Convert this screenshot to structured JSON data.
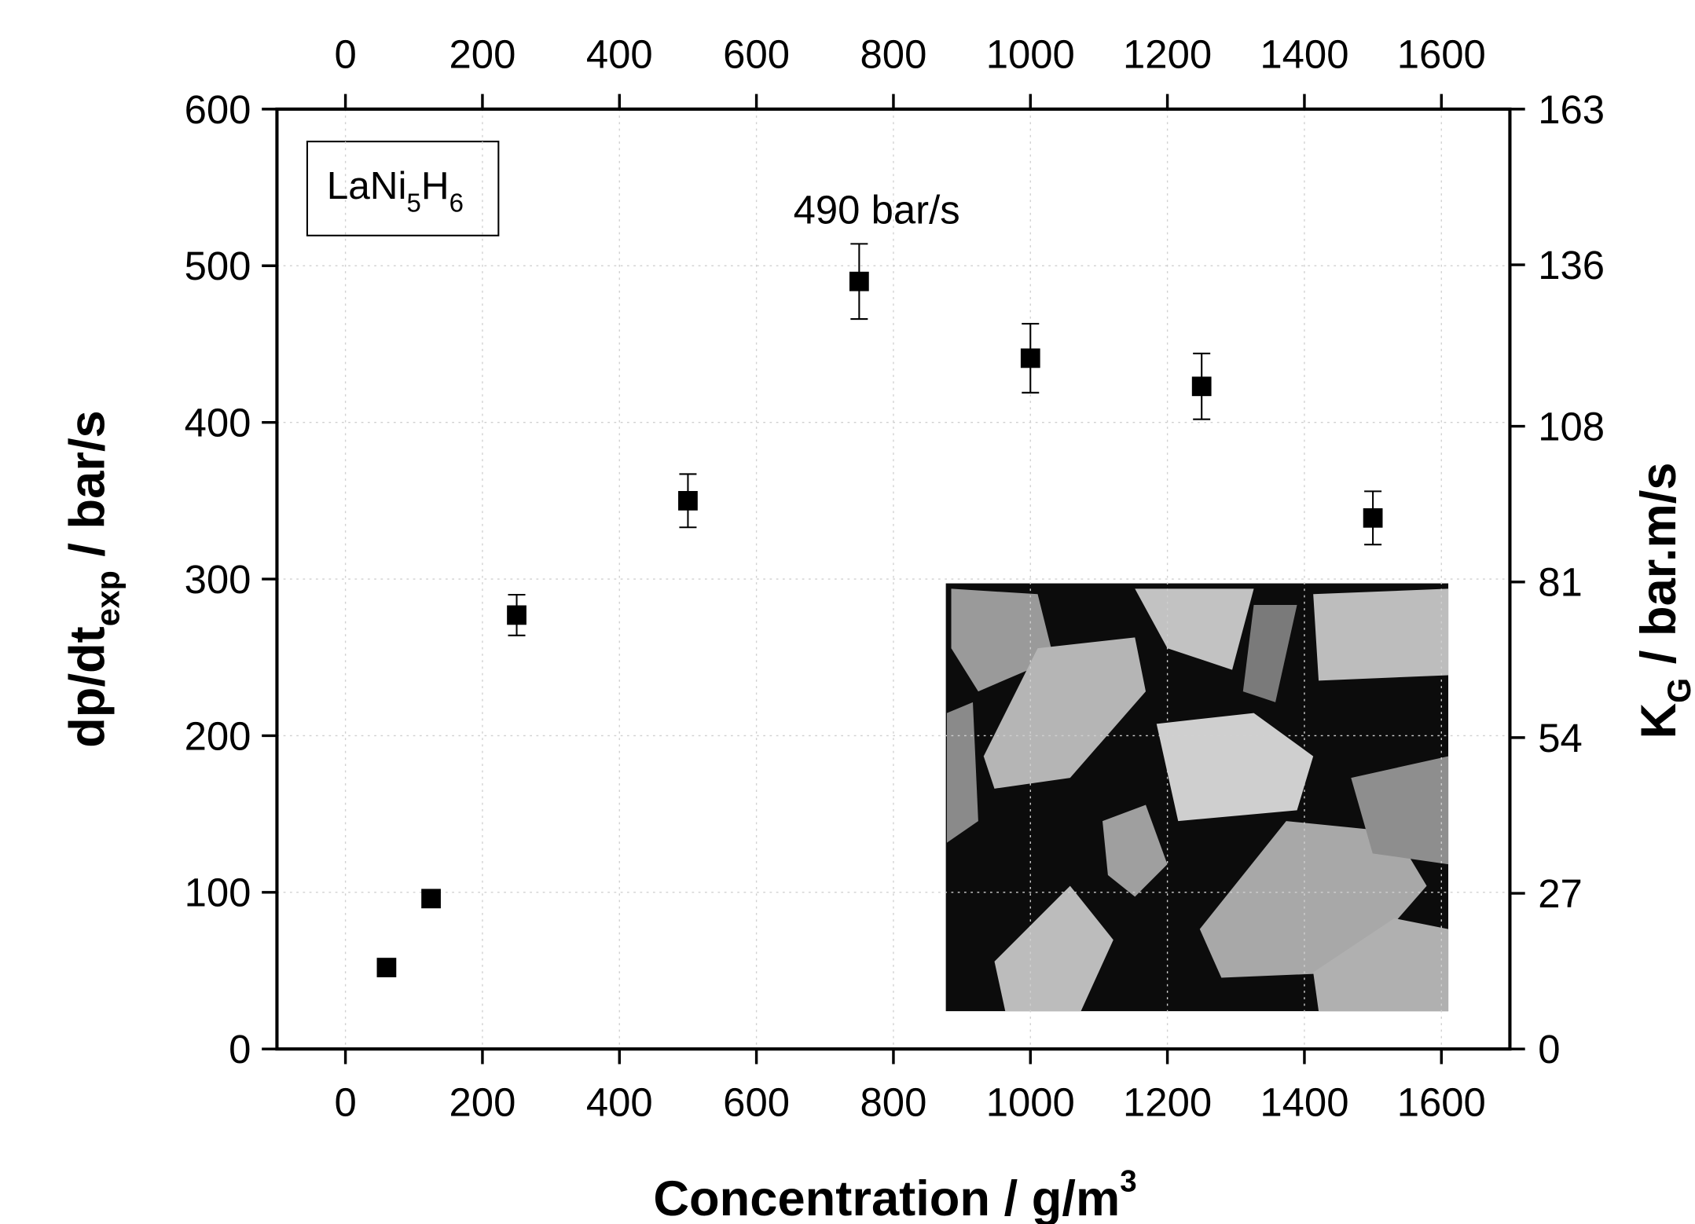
{
  "chart_data": {
    "type": "scatter",
    "x": [
      60,
      125,
      250,
      500,
      750,
      1000,
      1250,
      1500
    ],
    "values": [
      52,
      96,
      277,
      350,
      490,
      441,
      423,
      339
    ],
    "errors": [
      null,
      null,
      13,
      17,
      24,
      22,
      21,
      17
    ],
    "color": "#000000",
    "xlim": [
      -100,
      1700
    ],
    "xticks": [
      0,
      200,
      400,
      600,
      800,
      1000,
      1200,
      1400,
      1600
    ],
    "x2lim": [
      -100,
      1700
    ],
    "x2ticks": [
      0,
      200,
      400,
      600,
      800,
      1000,
      1200,
      1400,
      1600
    ],
    "ylim": [
      0,
      600
    ],
    "yticks": [
      0,
      100,
      200,
      300,
      400,
      500,
      600
    ],
    "y2lim": [
      0,
      163
    ],
    "y2ticks": [
      0,
      27,
      54,
      81,
      108,
      136,
      163
    ],
    "grid": true,
    "xlabel": [
      "Concentration / g/m",
      "3"
    ],
    "ylabel": [
      "dp/dt",
      "exp",
      " / bar/s"
    ],
    "y2label": [
      "K",
      "G",
      " / bar.m/s"
    ],
    "inset_label": [
      "LaNi",
      "5",
      "H",
      "6"
    ],
    "annotation": "490 bar/s"
  }
}
